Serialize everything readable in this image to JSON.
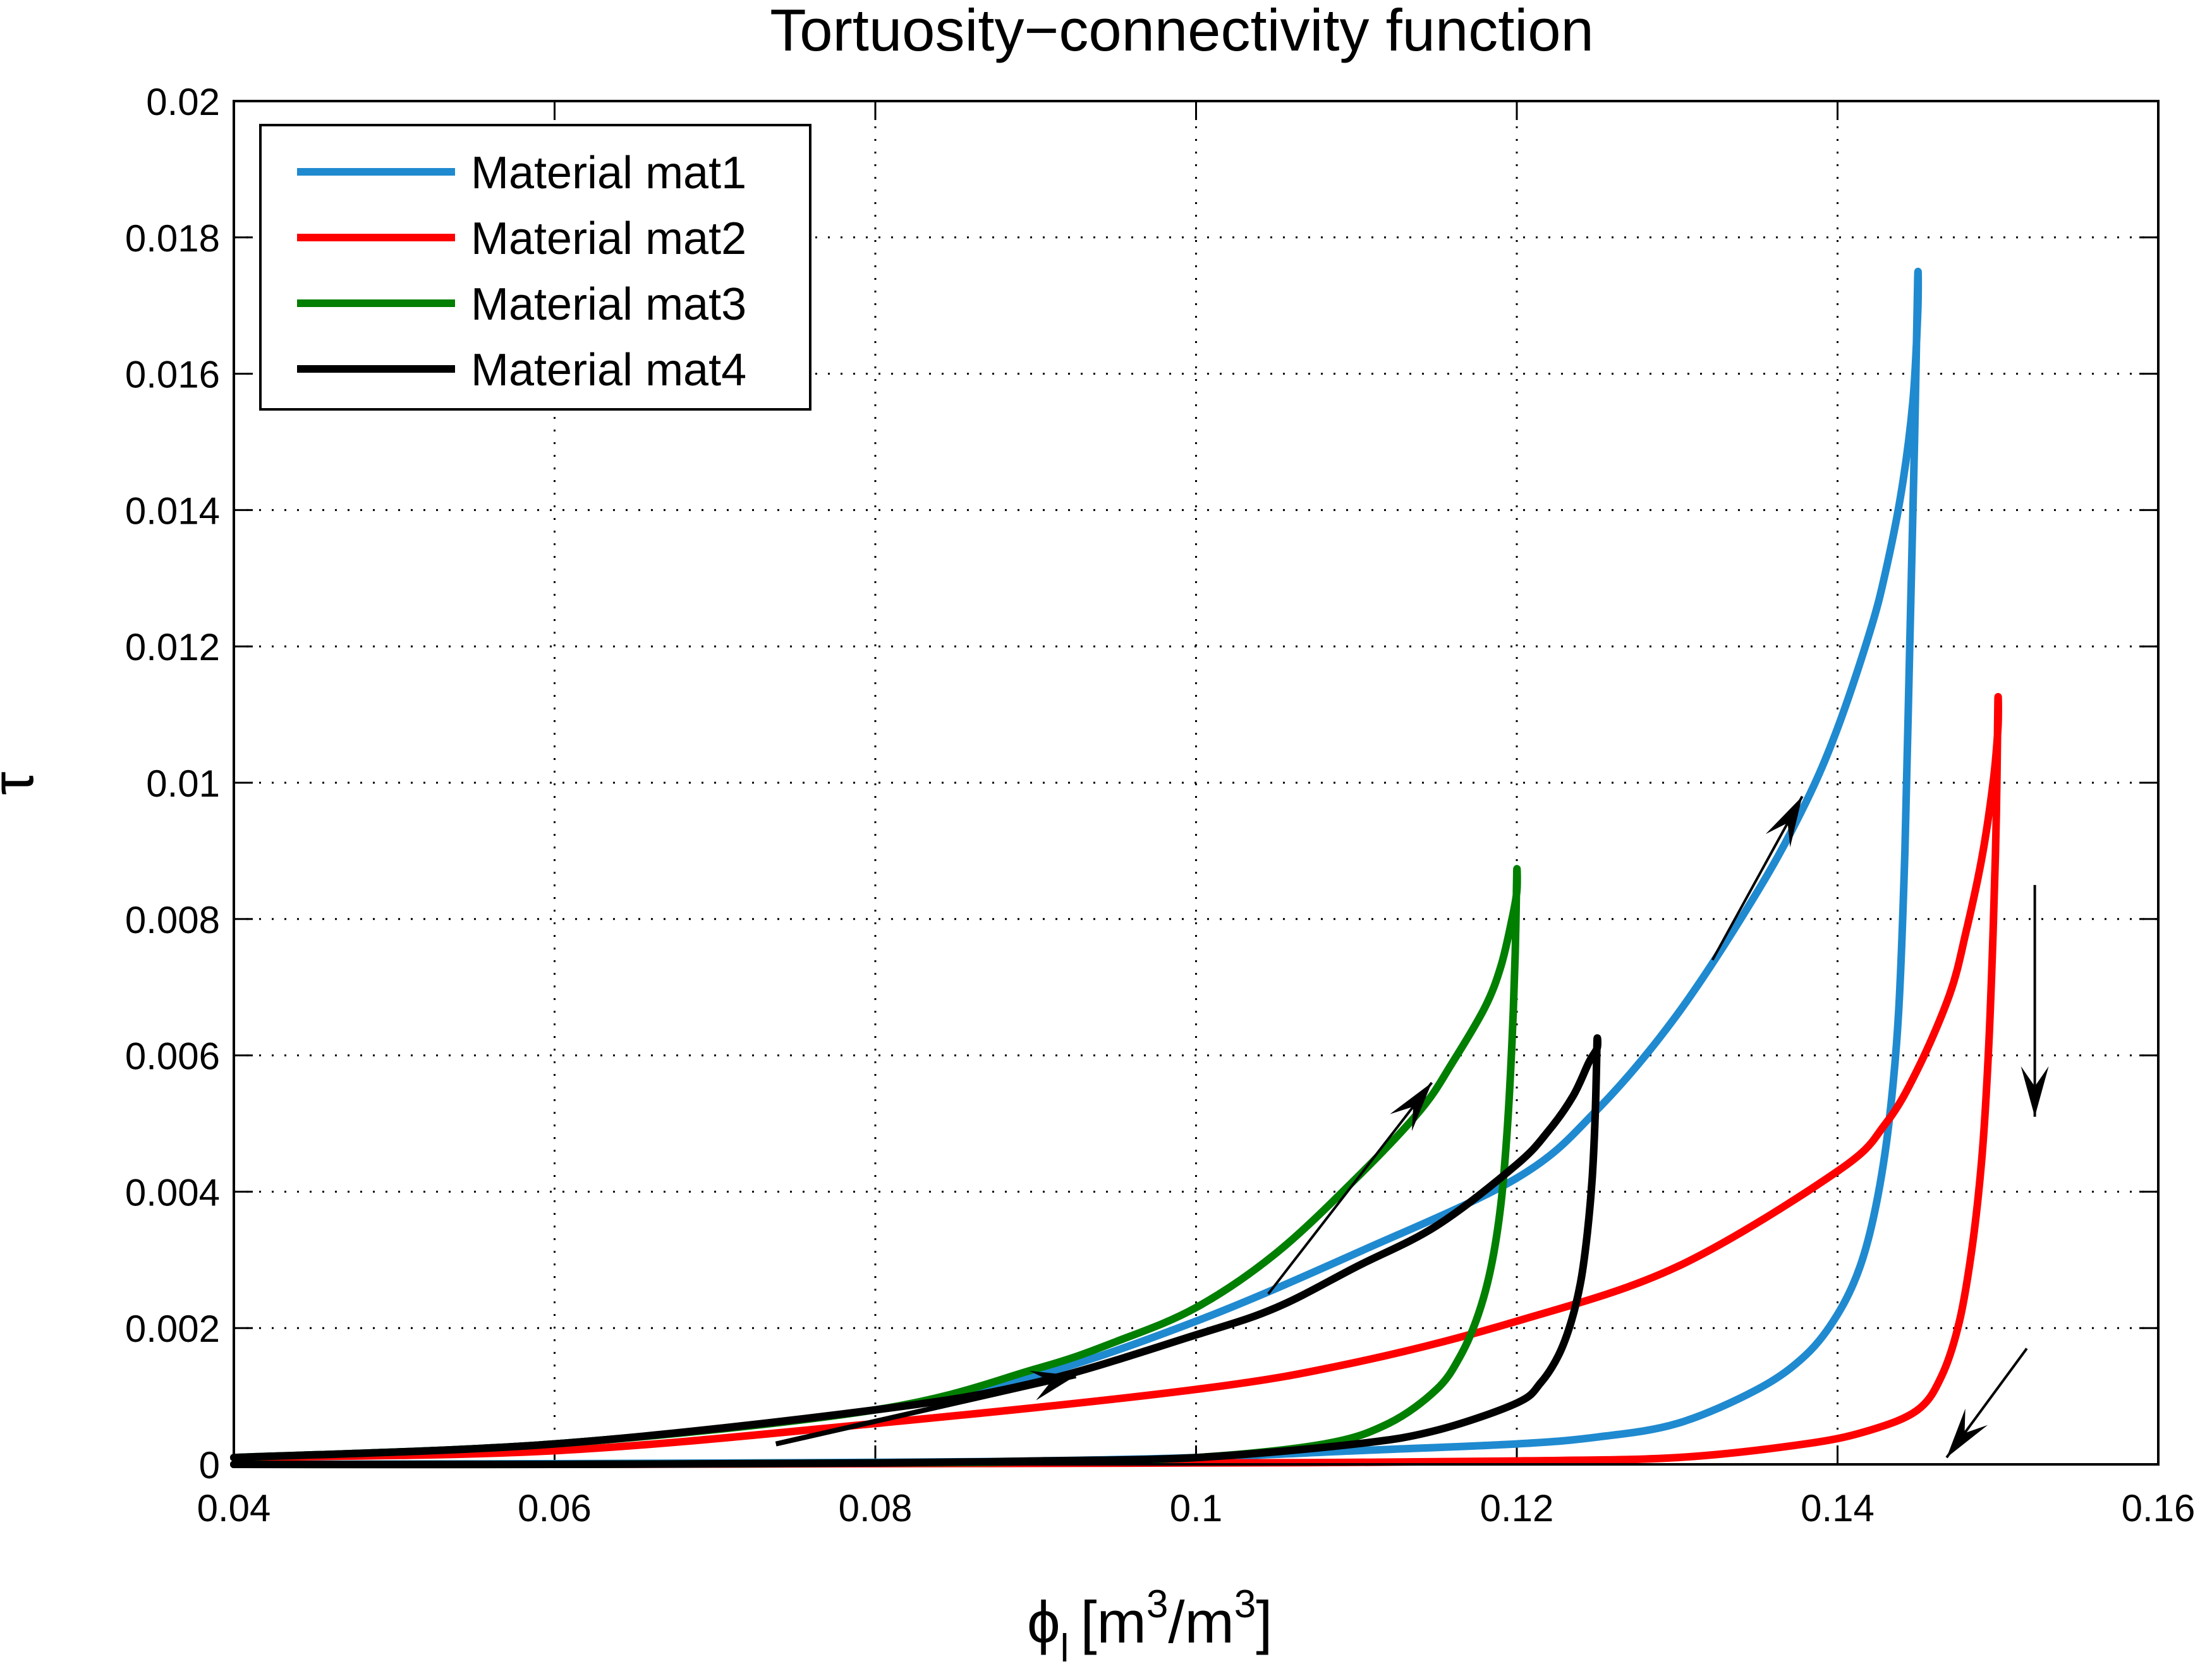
{
  "chart_data": {
    "type": "line",
    "title": "Tortuosity−connectivity function",
    "xlabel": "ϕ",
    "xlabel_sub": "l",
    "xlabel_unit_open": "[m",
    "xlabel_unit_sup1": "3",
    "xlabel_unit_mid": "/m",
    "xlabel_unit_sup2": "3",
    "xlabel_unit_close": "]",
    "ylabel": "τ",
    "xlim": [
      0.04,
      0.16
    ],
    "ylim": [
      0,
      0.02
    ],
    "grid": true,
    "legend_position": "top-left",
    "x_ticks": [
      0.04,
      0.06,
      0.08,
      0.1,
      0.12,
      0.14,
      0.16
    ],
    "x_tick_labels": [
      "0.04",
      "0.06",
      "0.08",
      "0.1",
      "0.12",
      "0.14",
      "0.16"
    ],
    "y_ticks": [
      0,
      0.002,
      0.004,
      0.006,
      0.008,
      0.01,
      0.012,
      0.014,
      0.016,
      0.018,
      0.02
    ],
    "y_tick_labels": [
      "0",
      "0.002",
      "0.004",
      "0.006",
      "0.008",
      "0.01",
      "0.012",
      "0.014",
      "0.016",
      "0.018",
      "0.02"
    ],
    "series": [
      {
        "name": "Material mat1",
        "color": "#1f8ad0",
        "x": [
          0.04,
          0.06,
          0.08,
          0.09,
          0.1,
          0.11,
          0.12,
          0.125,
          0.13,
          0.135,
          0.138,
          0.14,
          0.142,
          0.143,
          0.144,
          0.1447,
          0.145,
          0.145,
          0.1448,
          0.1445,
          0.1442,
          0.1438,
          0.1432,
          0.1424,
          0.1414,
          0.14,
          0.138,
          0.135,
          0.13,
          0.125,
          0.12,
          0.11,
          0.1,
          0.09,
          0.08,
          0.06,
          0.04
        ],
        "y": [
          0.0001,
          0.0003,
          0.0008,
          0.0013,
          0.0021,
          0.0031,
          0.0042,
          0.0052,
          0.0066,
          0.0084,
          0.0097,
          0.0108,
          0.0122,
          0.0131,
          0.0143,
          0.0156,
          0.0169,
          0.0174,
          0.015,
          0.012,
          0.009,
          0.0066,
          0.005,
          0.0038,
          0.0029,
          0.0022,
          0.0016,
          0.0011,
          0.0006,
          0.0004,
          0.0003,
          0.0002,
          0.0001,
          5e-05,
          3e-05,
          1e-05,
          0.0
        ]
      },
      {
        "name": "Material mat2",
        "color": "#ff0000",
        "x": [
          0.04,
          0.06,
          0.08,
          0.1,
          0.11,
          0.12,
          0.13,
          0.14,
          0.143,
          0.145,
          0.147,
          0.148,
          0.149,
          0.1497,
          0.15,
          0.15,
          0.1499,
          0.1497,
          0.1494,
          0.149,
          0.1484,
          0.1476,
          0.1465,
          0.145,
          0.142,
          0.138,
          0.13,
          0.12,
          0.11,
          0.1,
          0.08,
          0.06,
          0.04
        ],
        "y": [
          0.0001,
          0.0002,
          0.0006,
          0.0011,
          0.0015,
          0.0021,
          0.0029,
          0.0043,
          0.005,
          0.0058,
          0.0069,
          0.0078,
          0.0089,
          0.01,
          0.0108,
          0.0112,
          0.0095,
          0.0078,
          0.006,
          0.0045,
          0.0032,
          0.0021,
          0.0013,
          0.0008,
          0.0005,
          0.0003,
          0.0001,
          5e-05,
          3e-05,
          2e-05,
          1e-05,
          0.0,
          0.0
        ]
      },
      {
        "name": "Material mat3",
        "color": "#007f00",
        "x": [
          0.04,
          0.06,
          0.08,
          0.09,
          0.095,
          0.1,
          0.105,
          0.11,
          0.114,
          0.116,
          0.118,
          0.119,
          0.1197,
          0.12,
          0.12,
          0.1199,
          0.1197,
          0.1194,
          0.119,
          0.1184,
          0.1176,
          0.1165,
          0.115,
          0.112,
          0.108,
          0.1,
          0.09,
          0.08,
          0.06,
          0.04
        ],
        "y": [
          0.0001,
          0.0003,
          0.0008,
          0.0014,
          0.0018,
          0.0023,
          0.0031,
          0.0042,
          0.0052,
          0.0059,
          0.0067,
          0.0073,
          0.008,
          0.0084,
          0.0087,
          0.0075,
          0.0062,
          0.0049,
          0.0038,
          0.0029,
          0.0022,
          0.0016,
          0.0011,
          0.0006,
          0.0003,
          0.0001,
          4e-05,
          2e-05,
          0.0,
          0.0
        ]
      },
      {
        "name": "Material mat4",
        "color": "#000000",
        "x": [
          0.04,
          0.06,
          0.08,
          0.09,
          0.1,
          0.105,
          0.11,
          0.115,
          0.12,
          0.122,
          0.1235,
          0.1245,
          0.125,
          0.125,
          0.1249,
          0.1247,
          0.1244,
          0.124,
          0.1234,
          0.1226,
          0.1215,
          0.12,
          0.115,
          0.11,
          0.1,
          0.09,
          0.08,
          0.06,
          0.04
        ],
        "y": [
          0.0001,
          0.0003,
          0.0008,
          0.0012,
          0.0019,
          0.0023,
          0.0029,
          0.0035,
          0.0044,
          0.0049,
          0.0054,
          0.0059,
          0.0061,
          0.0062,
          0.0052,
          0.0042,
          0.0034,
          0.0027,
          0.0021,
          0.0016,
          0.0012,
          0.0009,
          0.0005,
          0.0003,
          0.0001,
          5e-05,
          2e-05,
          0.0,
          0.0
        ]
      }
    ],
    "annotations": [
      {
        "type": "arrow",
        "from": [
          0.1045,
          0.0025
        ],
        "to": [
          0.1147,
          0.0056
        ],
        "style": "thin"
      },
      {
        "type": "arrow",
        "from": [
          0.1322,
          0.0074
        ],
        "to": [
          0.1378,
          0.0098
        ],
        "style": "thin"
      },
      {
        "type": "arrow",
        "from": [
          0.1523,
          0.0085
        ],
        "to": [
          0.1523,
          0.0051
        ],
        "style": "thin"
      },
      {
        "type": "arrow",
        "from": [
          0.1518,
          0.0017
        ],
        "to": [
          0.1468,
          0.0001
        ],
        "style": "thin"
      },
      {
        "type": "arrow",
        "from": [
          0.0738,
          0.0003
        ],
        "to": [
          0.0925,
          0.0013
        ],
        "style": "bold"
      }
    ]
  }
}
